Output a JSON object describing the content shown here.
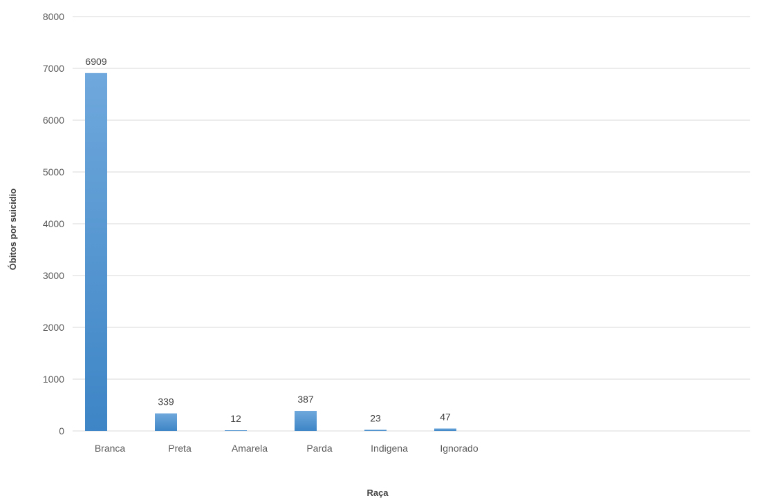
{
  "chart_data": {
    "type": "bar",
    "categories": [
      "Branca",
      "Preta",
      "Amarela",
      "Parda",
      "Indigena",
      "Ignorado"
    ],
    "values": [
      6909,
      339,
      12,
      387,
      23,
      47
    ],
    "data_labels": [
      "6909",
      "339",
      "12",
      "387",
      "23",
      "47"
    ],
    "xlabel": "Raça",
    "ylabel": "Óbitos por suicidio",
    "ylim": [
      0,
      8000
    ],
    "yticks": [
      0,
      1000,
      2000,
      3000,
      4000,
      5000,
      6000,
      7000,
      8000
    ],
    "ytick_labels": [
      "0",
      "1000",
      "2000",
      "3000",
      "4000",
      "5000",
      "6000",
      "7000",
      "8000"
    ],
    "grid": true,
    "legend": "none",
    "bar_color_top": "#6fa8dc",
    "bar_color_bottom": "#3d85c6"
  }
}
